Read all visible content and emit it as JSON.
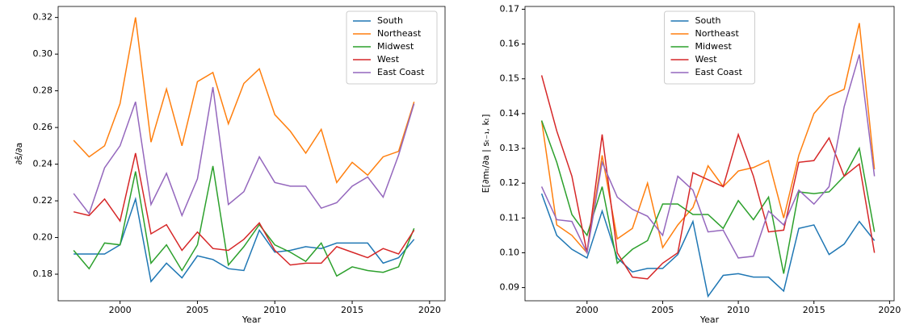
{
  "chart_data": [
    {
      "type": "line",
      "xlabel": "Year",
      "ylabel": "∂ŝ/∂a",
      "legend": "upper right",
      "x": [
        1997,
        1998,
        1999,
        2000,
        2001,
        2002,
        2003,
        2004,
        2005,
        2006,
        2007,
        2008,
        2009,
        2010,
        2011,
        2012,
        2013,
        2014,
        2015,
        2016,
        2017,
        2018,
        2019
      ],
      "xlim": [
        1996.0,
        2021.0
      ],
      "xticks": [
        2000,
        2005,
        2010,
        2015,
        2020
      ],
      "ylim": [
        0.1655,
        0.326
      ],
      "yticks": [
        0.18,
        {
          "value": 0.2,
          "label": "0.20"
        },
        0.22,
        0.24,
        0.26,
        0.28,
        {
          "value": 0.3,
          "label": "0.30"
        },
        0.32
      ],
      "series": [
        {
          "name": "South",
          "color": "#1f77b4",
          "values": [
            0.191,
            0.191,
            0.191,
            0.196,
            0.221,
            0.176,
            0.186,
            0.178,
            0.19,
            0.188,
            0.183,
            0.182,
            0.204,
            0.192,
            0.193,
            0.195,
            0.194,
            0.197,
            0.197,
            0.197,
            0.186,
            0.189,
            0.199
          ]
        },
        {
          "name": "Northeast",
          "color": "#ff7f0e",
          "values": [
            0.253,
            0.244,
            0.25,
            0.273,
            0.32,
            0.252,
            0.281,
            0.25,
            0.285,
            0.29,
            0.262,
            0.284,
            0.292,
            0.267,
            0.258,
            0.246,
            0.259,
            0.23,
            0.241,
            0.234,
            0.244,
            0.247,
            0.274
          ]
        },
        {
          "name": "Midwest",
          "color": "#2ca02c",
          "values": [
            0.193,
            0.183,
            0.197,
            0.196,
            0.236,
            0.186,
            0.196,
            0.182,
            0.196,
            0.239,
            0.185,
            0.195,
            0.207,
            0.196,
            0.192,
            0.187,
            0.197,
            0.179,
            0.184,
            0.182,
            0.181,
            0.184,
            0.205
          ]
        },
        {
          "name": "West",
          "color": "#d62728",
          "values": [
            0.214,
            0.212,
            0.221,
            0.209,
            0.246,
            0.202,
            0.207,
            0.193,
            0.203,
            0.194,
            0.193,
            0.199,
            0.208,
            0.193,
            0.185,
            0.186,
            0.186,
            0.195,
            0.192,
            0.189,
            0.194,
            0.191,
            0.204
          ]
        },
        {
          "name": "East Coast",
          "color": "#9467bd",
          "values": [
            0.224,
            0.213,
            0.238,
            0.25,
            0.274,
            0.218,
            0.235,
            0.212,
            0.232,
            0.282,
            0.218,
            0.225,
            0.244,
            0.23,
            0.228,
            0.228,
            0.216,
            0.219,
            0.228,
            0.233,
            0.222,
            0.245,
            0.273
          ]
        }
      ]
    },
    {
      "type": "line",
      "xlabel": "Year",
      "ylabel": "E[∂mₜ/∂a | sₜ₋₁, kₜ]",
      "legend": "upper center",
      "x": [
        1997,
        1998,
        1999,
        2000,
        2001,
        2002,
        2003,
        2004,
        2005,
        2006,
        2007,
        2008,
        2009,
        2010,
        2011,
        2012,
        2013,
        2014,
        2015,
        2016,
        2017,
        2018,
        2019
      ],
      "xlim": [
        1995.9,
        2020.3
      ],
      "xticks": [
        2000,
        2005,
        2010,
        2015,
        2020
      ],
      "ylim": [
        0.0862,
        0.1708
      ],
      "yticks": [
        0.09,
        {
          "value": 0.1,
          "label": "0.10"
        },
        0.11,
        0.12,
        0.13,
        0.14,
        0.15,
        0.16,
        0.17
      ],
      "series": [
        {
          "name": "South",
          "color": "#1f77b4",
          "values": [
            0.117,
            0.105,
            0.101,
            0.0985,
            0.112,
            0.0985,
            0.0945,
            0.0955,
            0.0955,
            0.0995,
            0.109,
            0.0875,
            0.0935,
            0.094,
            0.093,
            0.093,
            0.089,
            0.107,
            0.108,
            0.0995,
            0.1025,
            0.109,
            0.1035
          ]
        },
        {
          "name": "Northeast",
          "color": "#ff7f0e",
          "values": [
            0.138,
            0.108,
            0.105,
            0.1,
            0.128,
            0.104,
            0.107,
            0.12,
            0.1015,
            0.108,
            0.113,
            0.125,
            0.119,
            0.1235,
            0.1245,
            0.1265,
            0.11,
            0.128,
            0.14,
            0.145,
            0.147,
            0.166,
            0.124
          ]
        },
        {
          "name": "Midwest",
          "color": "#2ca02c",
          "values": [
            0.138,
            0.126,
            0.111,
            0.105,
            0.119,
            0.097,
            0.101,
            0.1035,
            0.114,
            0.114,
            0.111,
            0.111,
            0.107,
            0.115,
            0.1095,
            0.116,
            0.094,
            0.1175,
            0.117,
            0.1175,
            0.122,
            0.13,
            0.106
          ]
        },
        {
          "name": "West",
          "color": "#d62728",
          "values": [
            0.151,
            0.135,
            0.122,
            0.1,
            0.134,
            0.1,
            0.093,
            0.0925,
            0.097,
            0.1,
            0.123,
            0.121,
            0.119,
            0.134,
            0.122,
            0.106,
            0.1065,
            0.126,
            0.1265,
            0.133,
            0.122,
            0.1255,
            0.1
          ]
        },
        {
          "name": "East Coast",
          "color": "#9467bd",
          "values": [
            0.119,
            0.1095,
            0.109,
            0.1,
            0.126,
            0.116,
            0.1125,
            0.1105,
            0.105,
            0.122,
            0.118,
            0.106,
            0.1065,
            0.0985,
            0.099,
            0.112,
            0.108,
            0.118,
            0.114,
            0.119,
            0.142,
            0.157,
            0.122
          ]
        }
      ]
    }
  ]
}
